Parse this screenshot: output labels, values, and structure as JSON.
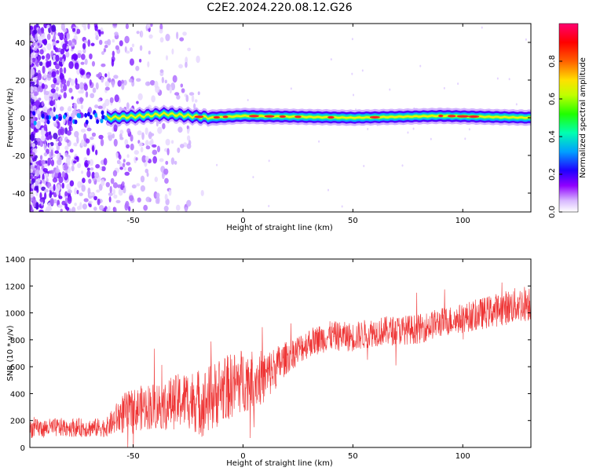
{
  "title": "C2E2.2024.220.08.12.G26",
  "chart_data": [
    {
      "type": "heatmap",
      "xlabel": "Height of straight line (km)",
      "ylabel": "Frequency (Hz)",
      "xlim": [
        -97,
        131
      ],
      "ylim": [
        -50,
        50
      ],
      "xticks": [
        -50,
        0,
        50,
        100
      ],
      "yticks": [
        -40,
        -20,
        0,
        20,
        40
      ],
      "colorbar": {
        "label": "Normalized spectral amplitude",
        "range": [
          0.0,
          1.0
        ],
        "ticks": [
          "0.0",
          "0.2",
          "0.4",
          "0.6",
          "0.8"
        ],
        "tick_values": [
          0.0,
          0.2,
          0.4,
          0.6,
          0.8
        ],
        "colormap": [
          "#ffffff",
          "#e0c8ff",
          "#a040ff",
          "#6000ff",
          "#0000ff",
          "#00c0ff",
          "#00ff80",
          "#40ff00",
          "#ffff00",
          "#ff8000",
          "#ff0000",
          "#ff0080"
        ]
      },
      "noise_region_x": [
        -97,
        -18
      ],
      "band_center": [
        {
          "x": -97,
          "y": 0
        },
        {
          "x": -60,
          "y": 0
        },
        {
          "x": -45,
          "y": 1
        },
        {
          "x": -35,
          "y": 2
        },
        {
          "x": -25,
          "y": 1
        },
        {
          "x": -15,
          "y": 0
        },
        {
          "x": 0,
          "y": 1
        },
        {
          "x": 50,
          "y": 0
        },
        {
          "x": 90,
          "y": 1
        },
        {
          "x": 131,
          "y": 0
        }
      ],
      "hot_spots_x": [
        -20,
        -12,
        -8,
        5,
        12,
        18,
        25,
        40,
        60,
        90,
        95,
        100,
        105
      ]
    },
    {
      "type": "line",
      "xlabel": "Height of straight line (km)",
      "ylabel": "SNR (10 * v/v)",
      "xlim": [
        -97,
        131
      ],
      "ylim": [
        0,
        1400
      ],
      "xticks": [
        -50,
        0,
        50,
        100
      ],
      "yticks": [
        0,
        200,
        400,
        600,
        800,
        1000,
        1200,
        1400
      ],
      "color": "#ee3333",
      "series": [
        {
          "x": [
            -97,
            -80,
            -70,
            -62,
            -55,
            -45,
            -35,
            -25,
            -18,
            -10,
            0,
            10,
            20,
            30,
            40,
            50,
            60,
            70,
            80,
            90,
            100,
            110,
            120,
            131
          ],
          "mean": [
            140,
            150,
            145,
            150,
            250,
            300,
            320,
            360,
            330,
            420,
            500,
            520,
            670,
            780,
            830,
            820,
            860,
            870,
            880,
            930,
            960,
            1000,
            1040,
            1080
          ],
          "spread": [
            70,
            70,
            70,
            70,
            150,
            170,
            190,
            220,
            260,
            250,
            240,
            200,
            120,
            110,
            110,
            110,
            110,
            110,
            110,
            110,
            110,
            120,
            130,
            140
          ]
        }
      ]
    }
  ]
}
